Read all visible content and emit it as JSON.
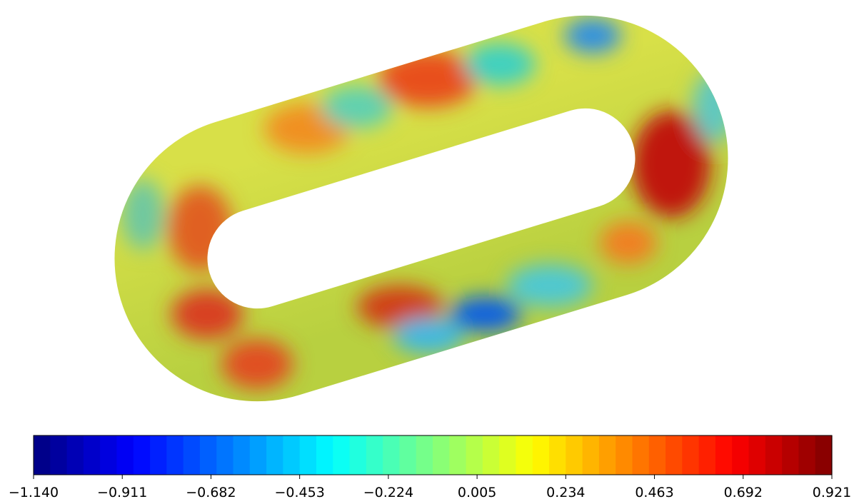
{
  "colorbar": {
    "lim": [
      -1.14,
      0.921
    ],
    "colormap": "jet",
    "ticks": [
      {
        "value": -1.14,
        "label": "−1.140"
      },
      {
        "value": -0.911,
        "label": "−0.911"
      },
      {
        "value": -0.682,
        "label": "−0.682"
      },
      {
        "value": -0.453,
        "label": "−0.453"
      },
      {
        "value": -0.224,
        "label": "−0.224"
      },
      {
        "value": 0.005,
        "label": "0.005"
      },
      {
        "value": 0.234,
        "label": "0.234"
      },
      {
        "value": 0.463,
        "label": "0.463"
      },
      {
        "value": 0.692,
        "label": "0.692"
      },
      {
        "value": 0.921,
        "label": "0.921"
      }
    ]
  }
}
